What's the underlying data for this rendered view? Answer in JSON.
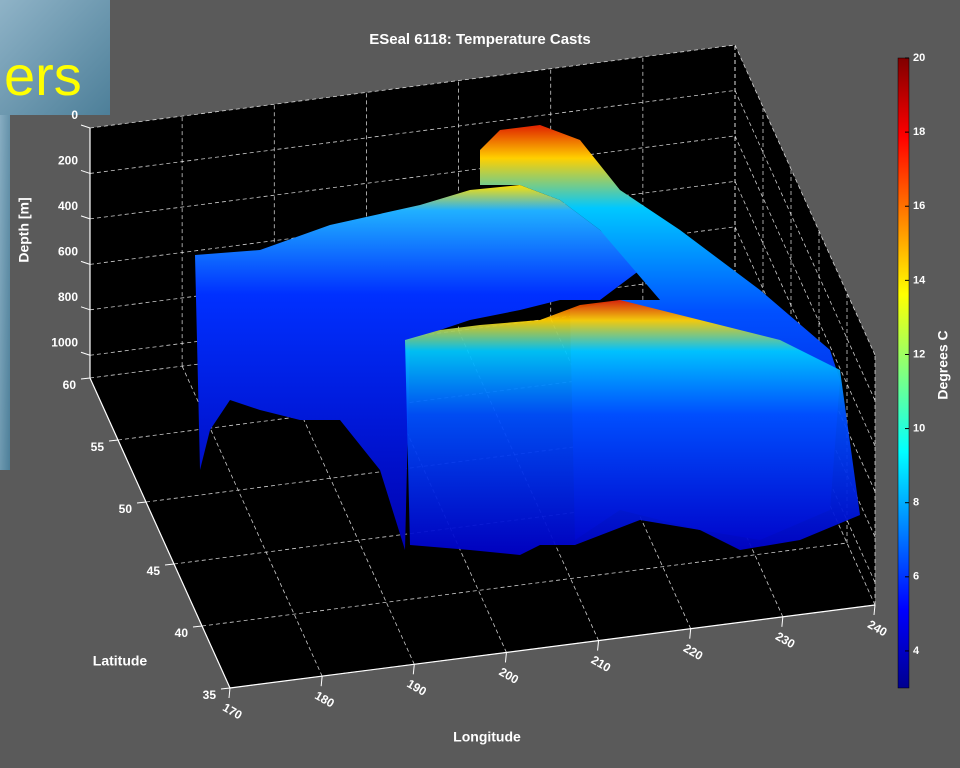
{
  "slide_text": "ers",
  "chart_data": {
    "type": "surface3d",
    "title": "ESeal 6118: Temperature Casts",
    "xlabel": "Longitude",
    "ylabel": "Latitude",
    "zlabel": "Depth [m]",
    "xlim": [
      170,
      240
    ],
    "xticks": [
      170,
      180,
      190,
      200,
      210,
      220,
      230,
      240
    ],
    "ylim": [
      35,
      60
    ],
    "yticks": [
      35,
      40,
      45,
      50,
      55,
      60
    ],
    "zlim": [
      0,
      1100
    ],
    "zticks": [
      0,
      200,
      400,
      600,
      800,
      1000
    ],
    "zreverse": true,
    "grid": true,
    "colorbar": {
      "label": "Degrees C",
      "clim": [
        3,
        20
      ],
      "ticks": [
        4,
        6,
        8,
        10,
        12,
        14,
        16,
        18,
        20
      ],
      "colormap": [
        "#00008f",
        "#0000ff",
        "#0080ff",
        "#00ffff",
        "#80ff80",
        "#ffff00",
        "#ff8000",
        "#ff0000",
        "#800000"
      ]
    }
  }
}
